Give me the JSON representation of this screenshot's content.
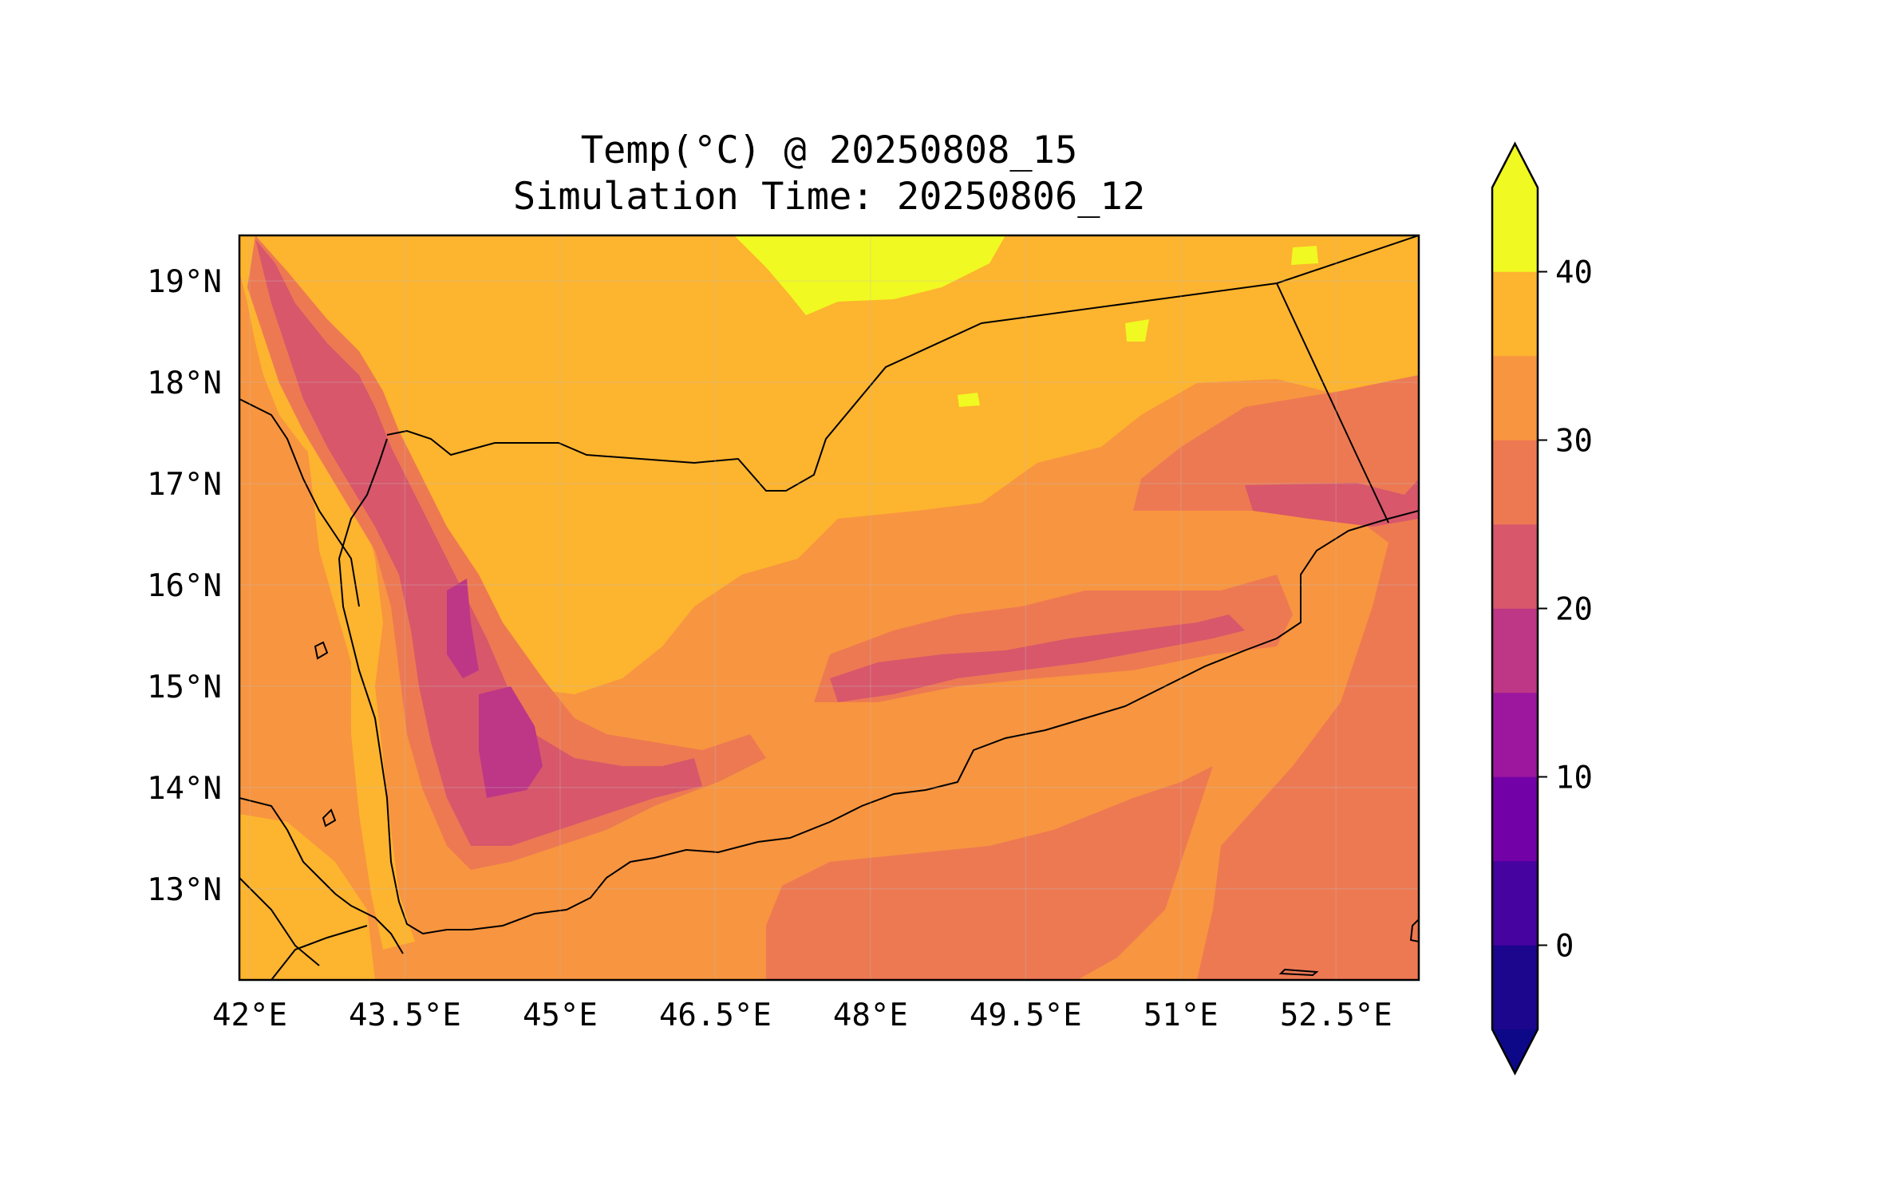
{
  "title": {
    "line1": "Temp(°C) @ 20250808_15",
    "line2": "Simulation Time: 20250806_12"
  },
  "map": {
    "lon_range": [
      41.9,
      53.3
    ],
    "lat_range": [
      12.1,
      19.45
    ],
    "lon_ticks": [
      42,
      43.5,
      45,
      46.5,
      48,
      49.5,
      51,
      52.5
    ],
    "lon_tick_labels": [
      "42°E",
      "43.5°E",
      "45°E",
      "46.5°E",
      "48°E",
      "49.5°E",
      "51°E",
      "52.5°E"
    ],
    "lat_ticks": [
      19,
      18,
      17,
      16,
      15,
      14,
      13
    ],
    "lat_tick_labels": [
      "19°N",
      "18°N",
      "17°N",
      "16°N",
      "15°N",
      "14°N",
      "13°N"
    ],
    "gridlines": true,
    "colormap": "plasma",
    "features": [
      "coastlines",
      "country borders"
    ]
  },
  "colorbar": {
    "boundaries": [
      -5,
      0,
      5,
      10,
      15,
      20,
      25,
      30,
      35,
      40,
      45
    ],
    "colors": [
      "#1b068d",
      "#47039f",
      "#7301a8",
      "#9c179e",
      "#bd3786",
      "#d8576b",
      "#ed7953",
      "#f89540",
      "#fdb42f",
      "#f0f921"
    ],
    "extend_min_color": "#0d0887",
    "extend_max_color": "#f0f921",
    "tick_values": [
      0,
      10,
      20,
      30,
      40
    ],
    "tick_labels": [
      "0",
      "10",
      "20",
      "30",
      "40"
    ],
    "extend": "both"
  }
}
